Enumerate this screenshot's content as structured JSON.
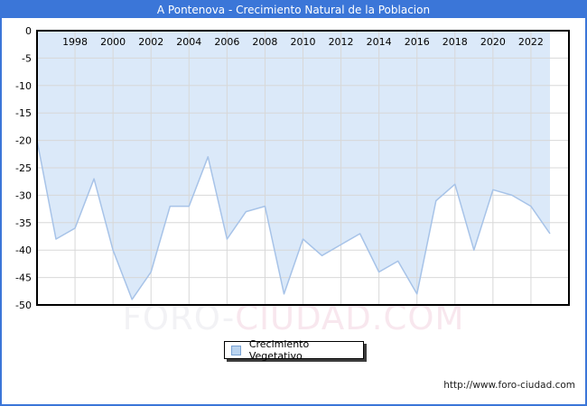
{
  "window": {
    "title": "A Pontenova - Crecimiento Natural de la Poblacion"
  },
  "legend": {
    "label": "Crecimiento Vegetativo"
  },
  "watermark": {
    "part1": "FORO-",
    "part2": "CIUDAD.COM"
  },
  "footer": {
    "url": "http://www.foro-ciudad.com"
  },
  "colors": {
    "titlebar_bg": "#3b76d8",
    "frame_border": "#3b76d8",
    "area_fill": "#dbe9f9",
    "line": "#a7c3e8",
    "gridline": "#d8d8d8",
    "plot_border": "#000000",
    "tick_text": "#000000",
    "legend_swatch_fill": "#b9d3ef",
    "legend_swatch_border": "#7aa3d4"
  },
  "chart_data": {
    "type": "area",
    "title": "A Pontenova - Crecimiento Natural de la Poblacion",
    "xlabel": "",
    "ylabel": "",
    "x": [
      1996,
      1997,
      1998,
      1999,
      2000,
      2001,
      2002,
      2003,
      2004,
      2005,
      2006,
      2007,
      2008,
      2009,
      2010,
      2011,
      2012,
      2013,
      2014,
      2015,
      2016,
      2017,
      2018,
      2019,
      2020,
      2021,
      2022,
      2023
    ],
    "series": [
      {
        "name": "Crecimiento Vegetativo",
        "values": [
          -20,
          -38,
          -36,
          -27,
          -40,
          -49,
          -44,
          -32,
          -32,
          -23,
          -38,
          -33,
          -32,
          -48,
          -38,
          -41,
          -39,
          -37,
          -44,
          -42,
          -48,
          -31,
          -28,
          -40,
          -29,
          -30,
          -32,
          -37
        ]
      }
    ],
    "xlim": [
      1996,
      2024
    ],
    "ylim": [
      -50,
      0
    ],
    "x_ticks": [
      1998,
      2000,
      2002,
      2004,
      2006,
      2008,
      2010,
      2012,
      2014,
      2016,
      2018,
      2020,
      2022
    ],
    "y_ticks": [
      0,
      -5,
      -10,
      -15,
      -20,
      -25,
      -30,
      -35,
      -40,
      -45,
      -50
    ],
    "grid": true,
    "legend_position": "bottom-center"
  }
}
